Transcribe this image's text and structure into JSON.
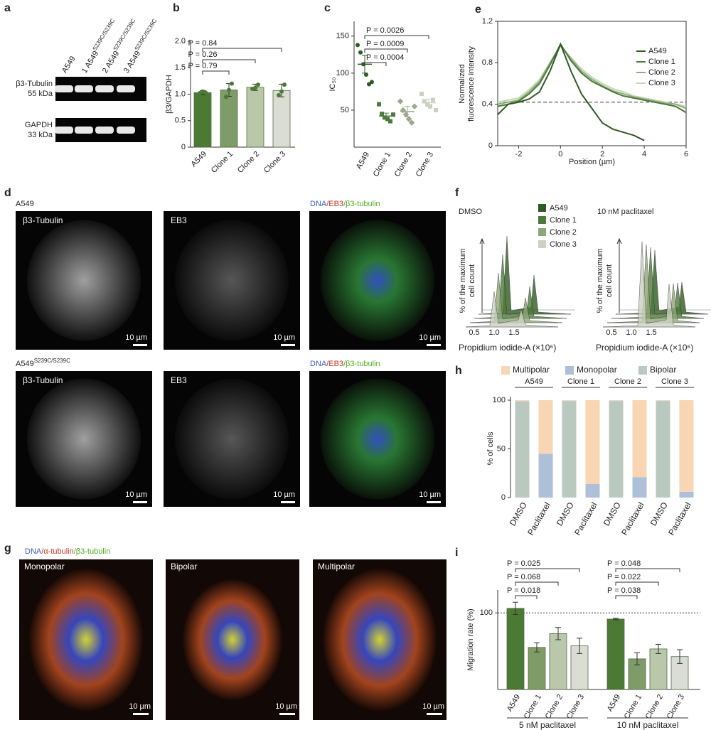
{
  "panel_labels": [
    "a",
    "b",
    "c",
    "d",
    "e",
    "f",
    "g",
    "h",
    "i"
  ],
  "panel_a": {
    "lanes": [
      {
        "text": "A549"
      },
      {
        "text": "1 A549",
        "sup": "S239C/S239C"
      },
      {
        "text": "2 A549",
        "sup": "S239C/S239C"
      },
      {
        "text": "3 A549",
        "sup": "S239C/S239C"
      }
    ],
    "blots": [
      {
        "label": "β3-Tubulin",
        "size": "55 kDa"
      },
      {
        "label": "GAPDH",
        "size": "33 kDa"
      }
    ]
  },
  "panel_d": {
    "rows": [
      {
        "cell": "A549"
      },
      {
        "cell": "A549",
        "sup": "S239C/S239C"
      }
    ],
    "channels": [
      "β3-Tubulin",
      "EB3"
    ],
    "merge": [
      {
        "text": "DNA",
        "color": "#3b5fc9"
      },
      {
        "text": "/EB3",
        "color": "#c0392b"
      },
      {
        "text": "/β3-tubulin",
        "color": "#4fae1f"
      }
    ],
    "scale_bar": "10 µm"
  },
  "panel_f": {
    "conditions": [
      "DMSO",
      "10 nM paclitaxel"
    ],
    "ylabel": [
      "% of the maximum",
      "cell count"
    ],
    "xticks": [
      "0.5",
      "1.0",
      "1.5"
    ],
    "xlabel": "Propidium iodide-A (×10⁶)",
    "legend": [
      {
        "name": "A549",
        "color": "#2f5a22"
      },
      {
        "name": "Clone 1",
        "color": "#4d7a3b"
      },
      {
        "name": "Clone 2",
        "color": "#8fa677"
      },
      {
        "name": "Clone 3",
        "color": "#c9d1c0"
      }
    ]
  },
  "panel_g": {
    "title": [
      {
        "text": "DNA",
        "color": "#3b5fc9"
      },
      {
        "text": "/α-tubulin",
        "color": "#c0392b"
      },
      {
        "text": "/β3-tubulin",
        "color": "#4fae1f"
      }
    ],
    "images": [
      "Monopolar",
      "Bipolar",
      "Multipolar"
    ],
    "scale_bar": "10 µm"
  },
  "chart_data": [
    {
      "type": "bar",
      "ylabel": "β3/GAPDH",
      "categories": [
        "A549",
        "Clone 1",
        "Clone 2",
        "Clone 3"
      ],
      "values": [
        1.03,
        1.08,
        1.13,
        1.07
      ],
      "errors": [
        0.04,
        0.12,
        0.06,
        0.12
      ],
      "points": [
        [
          1.02,
          1.05,
          1.03
        ],
        [
          0.95,
          1.08,
          1.2
        ],
        [
          1.1,
          1.12,
          1.18
        ],
        [
          0.98,
          1.05,
          1.18
        ]
      ],
      "colors": [
        "#4a7a33",
        "#7e9c67",
        "#b8c8a8",
        "#d9ddd3"
      ],
      "ylim": [
        0,
        2
      ],
      "yticks": [
        0,
        0.5,
        {
          "value": 1,
          "label": "1.0"
        },
        1.5,
        {
          "value": 2,
          "label": "2.0"
        }
      ],
      "comparisons": [
        "P = 0.79",
        "P = 0.26",
        "P = 0.84"
      ]
    },
    {
      "type": "dot",
      "ylabel": "IC₅₀",
      "categories": [
        "A549",
        "Clone 1",
        "Clone 2",
        "Clone 3"
      ],
      "values": [
        112,
        42,
        48,
        60
      ],
      "errors": [
        12,
        4,
        7,
        5
      ],
      "points": [
        [
          138,
          128,
          112,
          98,
          85,
          88
        ],
        [
          58,
          45,
          40,
          38,
          35,
          44
        ],
        [
          62,
          50,
          44,
          38,
          33,
          55
        ],
        [
          72,
          62,
          58,
          55,
          64,
          50
        ]
      ],
      "colors": [
        "#2f5a22",
        "#4d7a3b",
        "#9aa98c",
        "#c9d1c0"
      ],
      "ylim": [
        0,
        170
      ],
      "yticks": [
        50,
        100,
        150
      ],
      "comparisons": [
        "P = 0.0004",
        "P = 0.0009",
        "P = 0.0026"
      ]
    },
    {
      "type": "line",
      "xlabel": "Position (µm)",
      "ylabel": [
        "Normalized",
        "fluorescence intensity"
      ],
      "x": [
        -3,
        -2.5,
        -2,
        -1.5,
        -1,
        -0.5,
        0,
        0.5,
        1,
        1.5,
        2,
        2.5,
        3,
        3.5,
        4,
        4.5,
        5,
        5.5,
        6
      ],
      "series": [
        {
          "name": "A549",
          "color": "#2f5a22",
          "values": [
            0.3,
            0.4,
            0.42,
            0.45,
            0.52,
            0.72,
            0.98,
            0.72,
            0.5,
            0.36,
            0.22,
            0.16,
            0.13,
            0.1,
            0.05,
            null,
            null,
            null,
            null
          ]
        },
        {
          "name": "Clone 1",
          "color": "#4d7a3b",
          "values": [
            0.38,
            0.4,
            0.43,
            0.5,
            0.6,
            0.78,
            0.98,
            0.82,
            0.7,
            0.62,
            0.57,
            0.52,
            0.48,
            0.46,
            0.44,
            0.42,
            0.4,
            0.38,
            0.32
          ]
        },
        {
          "name": "Clone 2",
          "color": "#8fae7a",
          "values": [
            0.4,
            0.42,
            0.44,
            0.52,
            0.62,
            0.8,
            0.97,
            0.84,
            0.72,
            0.64,
            0.58,
            0.53,
            0.5,
            0.47,
            0.45,
            0.43,
            0.41,
            0.4,
            0.36
          ]
        },
        {
          "name": "Clone 3",
          "color": "#c7d6b8",
          "values": [
            0.42,
            0.44,
            0.46,
            0.54,
            0.64,
            0.8,
            0.96,
            0.85,
            0.74,
            0.66,
            0.6,
            0.55,
            0.52,
            0.48,
            0.46,
            0.44,
            0.42,
            0.4,
            0.38
          ]
        }
      ],
      "xlim": [
        -3,
        6
      ],
      "xticks": [
        -2,
        0,
        2,
        4,
        6
      ],
      "ylim": [
        0,
        1.2
      ],
      "yticks": [
        0,
        0.4,
        0.8,
        1.2
      ],
      "reference_line": 0.42
    },
    {
      "type": "stacked_bar",
      "ylabel": "% of cells",
      "categories": [
        "DMSO",
        "Paclitaxel",
        "DMSO",
        "Paclitaxel",
        "DMSO",
        "Paclitaxel",
        "DMSO",
        "Paclitaxel"
      ],
      "groups": [
        "A549",
        "Clone 1",
        "Clone 2",
        "Clone 3"
      ],
      "series": [
        {
          "name": "Bipolar",
          "color": "#b9c9c0",
          "values": [
            98,
            0,
            99,
            0,
            99,
            0,
            99,
            0
          ]
        },
        {
          "name": "Monopolar",
          "color": "#aebfd8",
          "values": [
            1,
            45,
            0.5,
            14,
            0.5,
            21,
            0.5,
            6
          ]
        },
        {
          "name": "Multipolar",
          "color": "#f8d6b4",
          "values": [
            1,
            55,
            0.5,
            86,
            0.5,
            79,
            0.5,
            94
          ]
        }
      ],
      "ylim": [
        0,
        100
      ],
      "yticks": [
        0,
        50,
        100
      ]
    },
    {
      "type": "bar",
      "ylabel": "Migration rate (%)",
      "categories": [
        "A549",
        "Clone 1",
        "Clone 2",
        "Clone 3",
        "A549",
        "Clone 1",
        "Clone 2",
        "Clone 3"
      ],
      "groups": [
        "5 nM paclitaxel",
        "10 nM paclitaxel"
      ],
      "values": [
        106,
        55,
        73,
        57,
        92,
        40,
        53,
        43
      ],
      "errors": [
        8,
        6,
        8,
        10,
        1,
        8,
        6,
        9
      ],
      "colors": [
        "#4a7a33",
        "#7e9c67",
        "#b8c8a8",
        "#d9ddd3",
        "#4a7a33",
        "#7e9c67",
        "#b8c8a8",
        "#d9ddd3"
      ],
      "ylim": [
        0,
        130
      ],
      "yticks": [
        100
      ],
      "reference_line": 100,
      "comparisons": [
        "P = 0.018",
        "P = 0.068",
        "P = 0.025",
        "P = 0.038",
        "P = 0.022",
        "P = 0.048"
      ]
    }
  ]
}
